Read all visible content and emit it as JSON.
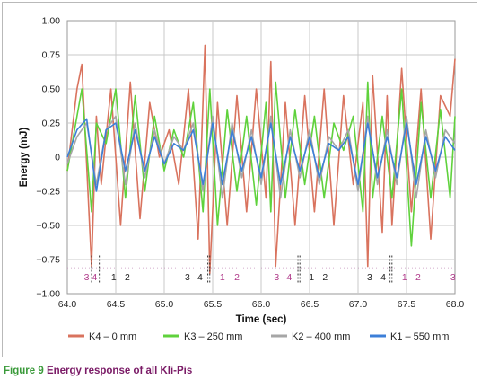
{
  "chart_data": {
    "type": "line",
    "xlabel": "Time (sec)",
    "ylabel": "Energy (mJ)",
    "xlim": [
      64.0,
      68.0
    ],
    "ylim": [
      -1.0,
      1.0
    ],
    "xticks": [
      "64.0",
      "64.5",
      "65.0",
      "65.5",
      "66.0",
      "66.5",
      "67.0",
      "67.5",
      "68.0"
    ],
    "yticks": [
      "1.00",
      "0.75",
      "0.50",
      "0.25",
      "0",
      "−0.25",
      "−0.50",
      "−0.75",
      "−1.00"
    ],
    "grid": true,
    "legend_position": "bottom",
    "series": [
      {
        "name": "K4 – 0 mm",
        "color": "#d9735e",
        "x": [
          64.0,
          64.1,
          64.15,
          64.25,
          64.3,
          64.35,
          64.45,
          64.55,
          64.65,
          64.75,
          64.85,
          64.95,
          65.05,
          65.15,
          65.25,
          65.35,
          65.42,
          65.47,
          65.55,
          65.65,
          65.75,
          65.85,
          65.95,
          66.05,
          66.1,
          66.15,
          66.25,
          66.35,
          66.45,
          66.55,
          66.65,
          66.75,
          66.85,
          66.95,
          67.05,
          67.1,
          67.15,
          67.25,
          67.3,
          67.35,
          67.45,
          67.55,
          67.65,
          67.75,
          67.85,
          67.95,
          68.0
        ],
        "y": [
          -0.1,
          0.5,
          0.68,
          -0.8,
          0.3,
          -0.2,
          0.5,
          -0.5,
          0.55,
          -0.45,
          0.4,
          0.0,
          0.2,
          -0.2,
          0.5,
          -0.6,
          0.82,
          -0.85,
          0.4,
          -0.5,
          0.45,
          -0.4,
          0.5,
          -0.3,
          0.7,
          -0.8,
          0.4,
          -0.5,
          0.45,
          -0.4,
          0.5,
          -0.5,
          0.45,
          -0.2,
          0.4,
          -0.8,
          0.6,
          -0.55,
          0.45,
          -0.5,
          0.65,
          -0.4,
          0.5,
          -0.6,
          0.45,
          0.3,
          0.72
        ]
      },
      {
        "name": "K3 – 250 mm",
        "color": "#5fd23c",
        "x": [
          64.0,
          64.1,
          64.15,
          64.25,
          64.3,
          64.4,
          64.5,
          64.6,
          64.7,
          64.8,
          64.9,
          65.0,
          65.1,
          65.2,
          65.3,
          65.4,
          65.47,
          65.55,
          65.65,
          65.75,
          65.85,
          65.95,
          66.05,
          66.1,
          66.15,
          66.25,
          66.35,
          66.45,
          66.55,
          66.65,
          66.75,
          66.85,
          66.95,
          67.05,
          67.1,
          67.15,
          67.25,
          67.35,
          67.45,
          67.55,
          67.65,
          67.75,
          67.85,
          67.95,
          68.0
        ],
        "y": [
          -0.1,
          0.3,
          0.5,
          -0.4,
          0.25,
          0.1,
          0.5,
          -0.3,
          0.45,
          -0.25,
          0.3,
          -0.1,
          0.2,
          0.0,
          0.4,
          -0.4,
          0.5,
          -0.5,
          0.35,
          -0.25,
          0.3,
          -0.35,
          0.4,
          -0.4,
          0.55,
          -0.3,
          0.35,
          -0.2,
          0.3,
          -0.3,
          0.25,
          0.05,
          0.3,
          -0.4,
          0.55,
          -0.3,
          0.3,
          -0.3,
          0.5,
          -0.65,
          0.4,
          -0.3,
          0.35,
          -0.3,
          0.3
        ]
      },
      {
        "name": "K2 – 400 mm",
        "color": "#a6a6a6",
        "x": [
          64.0,
          64.1,
          64.2,
          64.3,
          64.4,
          64.5,
          64.6,
          64.7,
          64.8,
          64.9,
          65.0,
          65.1,
          65.2,
          65.3,
          65.4,
          65.5,
          65.6,
          65.7,
          65.8,
          65.9,
          66.0,
          66.1,
          66.2,
          66.3,
          66.4,
          66.5,
          66.6,
          66.7,
          66.8,
          66.9,
          67.0,
          67.1,
          67.2,
          67.3,
          67.4,
          67.5,
          67.6,
          67.7,
          67.8,
          67.9,
          68.0
        ],
        "y": [
          -0.05,
          0.15,
          0.25,
          -0.2,
          0.2,
          0.3,
          -0.2,
          0.25,
          -0.15,
          0.2,
          -0.05,
          0.15,
          0.05,
          0.25,
          -0.25,
          0.3,
          -0.3,
          0.25,
          -0.15,
          0.2,
          -0.2,
          0.3,
          -0.3,
          0.2,
          -0.15,
          0.2,
          -0.2,
          0.15,
          0.05,
          0.2,
          -0.25,
          0.3,
          -0.2,
          0.2,
          -0.2,
          0.3,
          -0.3,
          0.2,
          -0.15,
          0.2,
          0.1
        ]
      },
      {
        "name": "K1 – 550 mm",
        "color": "#3c7fd8",
        "x": [
          64.0,
          64.1,
          64.2,
          64.3,
          64.4,
          64.5,
          64.6,
          64.7,
          64.8,
          64.9,
          65.0,
          65.1,
          65.2,
          65.3,
          65.4,
          65.5,
          65.6,
          65.7,
          65.8,
          65.9,
          66.0,
          66.1,
          66.2,
          66.3,
          66.4,
          66.5,
          66.6,
          66.7,
          66.8,
          66.9,
          67.0,
          67.1,
          67.2,
          67.3,
          67.4,
          67.5,
          67.6,
          67.7,
          67.8,
          67.9,
          68.0
        ],
        "y": [
          0.0,
          0.2,
          0.28,
          -0.25,
          0.2,
          0.25,
          -0.1,
          0.2,
          -0.1,
          0.15,
          -0.05,
          0.1,
          0.05,
          0.2,
          -0.2,
          0.25,
          -0.2,
          0.2,
          -0.1,
          0.15,
          -0.15,
          0.25,
          -0.2,
          0.15,
          -0.1,
          0.15,
          -0.15,
          0.1,
          0.05,
          0.15,
          -0.2,
          0.25,
          -0.15,
          0.15,
          -0.15,
          0.25,
          -0.2,
          0.15,
          -0.1,
          0.15,
          0.05
        ]
      }
    ],
    "annotations": {
      "markers": [
        64.25,
        64.33,
        65.45,
        65.47,
        66.38,
        66.4,
        67.33,
        67.35
      ],
      "labels": [
        {
          "x": 64.2,
          "text": "3",
          "color": "#b03a8a"
        },
        {
          "x": 64.28,
          "text": "4",
          "color": "#b03a8a"
        },
        {
          "x": 64.48,
          "text": "1",
          "color": "#222222"
        },
        {
          "x": 64.62,
          "text": "2",
          "color": "#222222"
        },
        {
          "x": 65.24,
          "text": "3",
          "color": "#222222"
        },
        {
          "x": 65.37,
          "text": "4",
          "color": "#222222"
        },
        {
          "x": 65.6,
          "text": "1",
          "color": "#b03a8a"
        },
        {
          "x": 65.75,
          "text": "2",
          "color": "#b03a8a"
        },
        {
          "x": 66.16,
          "text": "3",
          "color": "#b03a8a"
        },
        {
          "x": 66.29,
          "text": "4",
          "color": "#b03a8a"
        },
        {
          "x": 66.52,
          "text": "1",
          "color": "#222222"
        },
        {
          "x": 66.66,
          "text": "2",
          "color": "#222222"
        },
        {
          "x": 67.12,
          "text": "3",
          "color": "#222222"
        },
        {
          "x": 67.26,
          "text": "4",
          "color": "#222222"
        },
        {
          "x": 67.48,
          "text": "1",
          "color": "#b03a8a"
        },
        {
          "x": 67.62,
          "text": "2",
          "color": "#b03a8a"
        },
        {
          "x": 67.98,
          "text": "3",
          "color": "#b03a8a"
        }
      ]
    }
  },
  "caption": {
    "number": "Figure 9",
    "text": "Energy response of all Kli-Pis"
  }
}
